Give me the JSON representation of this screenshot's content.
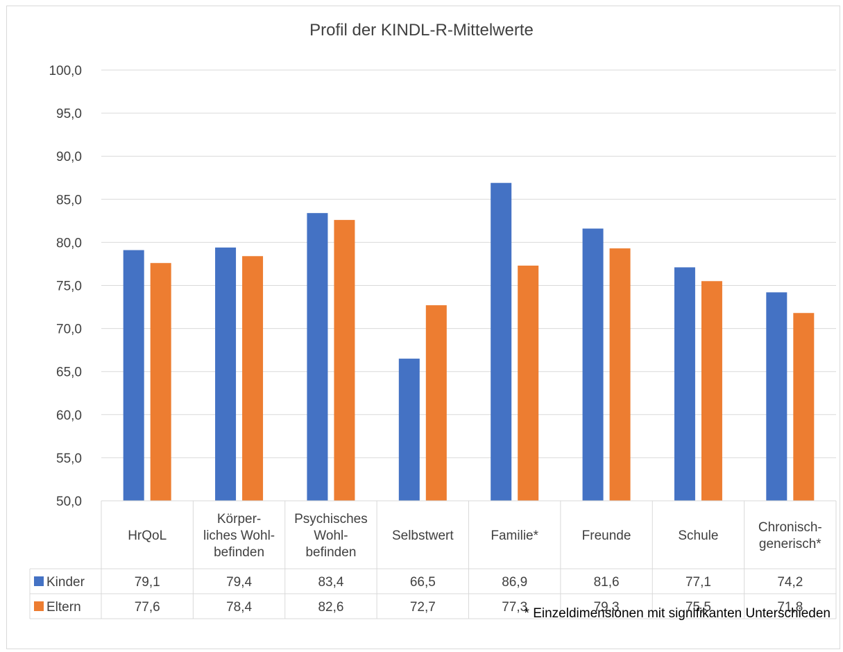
{
  "chart_data": {
    "type": "bar",
    "title": "Profil der KINDL-R-Mittelwerte",
    "categories": [
      [
        "HrQoL"
      ],
      [
        "Körper-",
        "liches Wohl-",
        "befinden"
      ],
      [
        "Psychisches",
        "Wohl-",
        "befinden"
      ],
      [
        "Selbstwert"
      ],
      [
        "Familie*"
      ],
      [
        "Freunde"
      ],
      [
        "Schule"
      ],
      [
        "Chronisch-",
        "generisch*"
      ]
    ],
    "series": [
      {
        "name": "Kinder",
        "color": "#4472C4",
        "values": [
          79.1,
          79.4,
          83.4,
          66.5,
          86.9,
          81.6,
          77.1,
          74.2
        ],
        "labels": [
          "79,1",
          "79,4",
          "83,4",
          "66,5",
          "86,9",
          "81,6",
          "77,1",
          "74,2"
        ]
      },
      {
        "name": "Eltern",
        "color": "#ED7D31",
        "values": [
          77.6,
          78.4,
          82.6,
          72.7,
          77.3,
          79.3,
          75.5,
          71.8
        ],
        "labels": [
          "77,6",
          "78,4",
          "82,6",
          "72,7",
          "77,3",
          "79,3",
          "75,5",
          "71,8"
        ]
      }
    ],
    "ylim": [
      50,
      100
    ],
    "yticks": [
      "50,0",
      "55,0",
      "60,0",
      "65,0",
      "70,0",
      "75,0",
      "80,0",
      "85,0",
      "90,0",
      "95,0",
      "100,0"
    ],
    "grid": true,
    "legend": "data-table",
    "footnote": "* Einzeldimensionen mit signifikanten Unterschieden"
  }
}
